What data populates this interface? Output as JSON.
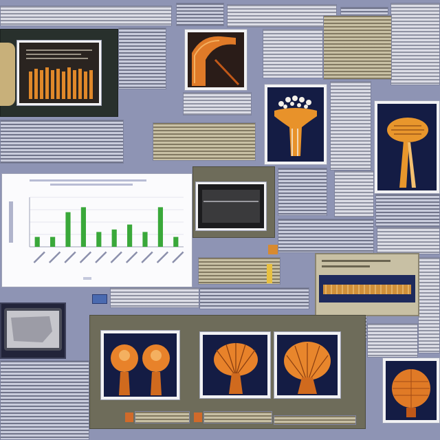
{
  "chart_data": {
    "type": "bar",
    "categories": [
      "",
      "",
      "",
      "",
      "",
      "",
      "",
      "",
      "",
      ""
    ],
    "values": [
      4,
      4,
      14,
      16,
      6,
      7,
      9,
      6,
      16,
      4
    ],
    "ylim": [
      0,
      20
    ],
    "grid": true,
    "title": "",
    "xlabel": "",
    "ylabel": ""
  },
  "colors": {
    "background": "#8e94b4",
    "bar_green": "#3aa83a",
    "orange": "#e8902a",
    "navy": "#141c44",
    "dark_panel": "#28302c"
  },
  "images": [
    {
      "name": "orange-bar-image"
    },
    {
      "name": "orange-arch-image"
    },
    {
      "name": "tree-structure-image"
    },
    {
      "name": "mushroom-image"
    },
    {
      "name": "screen-image"
    },
    {
      "name": "comb-image"
    },
    {
      "name": "tablet-image"
    },
    {
      "name": "twin-orbs-image"
    },
    {
      "name": "fan-structure-a-image"
    },
    {
      "name": "fan-structure-b-image"
    },
    {
      "name": "sphere-image"
    }
  ]
}
